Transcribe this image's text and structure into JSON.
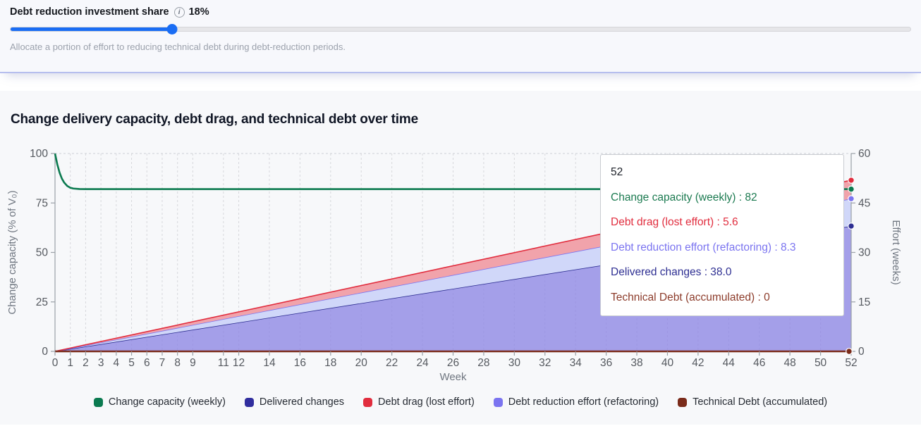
{
  "controls": {
    "label": "Debt reduction investment share",
    "info_icon": "info-circle",
    "info_glyph": "i",
    "value_label": "18%",
    "value_percent": 18,
    "help": "Allocate a portion of effort to reducing technical debt during debt-reduction periods."
  },
  "tooltip": {
    "week": "52",
    "lines": [
      {
        "label": "Change capacity (weekly)",
        "value": "82",
        "text": "Change capacity (weekly) : 82",
        "color": "#1b7a50"
      },
      {
        "label": "Debt drag (lost effort)",
        "value": "5.6",
        "text": "Debt drag (lost effort) : 5.6",
        "color": "#e12d3e"
      },
      {
        "label": "Debt reduction effort (refactoring)",
        "value": "8.3",
        "text": "Debt reduction effort (refactoring) : 8.3",
        "color": "#7b74f0"
      },
      {
        "label": "Delivered changes",
        "value": "38.0",
        "text": "Delivered changes : 38.0",
        "color": "#2e2f92"
      },
      {
        "label": "Technical Debt (accumulated)",
        "value": "0",
        "text": "Technical Debt (accumulated) : 0",
        "color": "#8c3b2a"
      }
    ]
  },
  "legend": [
    {
      "label": "Change capacity (weekly)",
      "color": "#0b7a50"
    },
    {
      "label": "Delivered changes",
      "color": "#312e9e"
    },
    {
      "label": "Debt drag (lost effort)",
      "color": "#e12d3e"
    },
    {
      "label": "Debt reduction effort (refactoring)",
      "color": "#7b74f0"
    },
    {
      "label": "Technical Debt (accumulated)",
      "color": "#7a2b1a"
    }
  ],
  "chart_data": {
    "type": "area",
    "title": "Change delivery capacity, debt drag, and technical debt over time",
    "xlabel": "Week",
    "ylabel_left": "Change capacity (% of V₀)",
    "ylabel_right": "Effort (weeks)",
    "x_range": [
      0,
      52
    ],
    "y_left_range": [
      0,
      100
    ],
    "y_right_range": [
      0,
      60
    ],
    "x_ticks": [
      0,
      1,
      2,
      3,
      4,
      5,
      6,
      7,
      8,
      9,
      11,
      12,
      14,
      16,
      18,
      20,
      22,
      24,
      26,
      28,
      30,
      32,
      34,
      36,
      38,
      40,
      42,
      44,
      46,
      48,
      50,
      52
    ],
    "y_left_ticks": [
      0,
      25,
      50,
      75,
      100
    ],
    "y_right_ticks": [
      0,
      15,
      30,
      45,
      60
    ],
    "grid": "vertical-dashed, top-boundary-dashed",
    "legend_position": "bottom-center",
    "series": [
      {
        "name": "Delivered changes",
        "kind": "area",
        "axis": "right",
        "stack": true,
        "color": "#2e2f92",
        "fill": "#8d85e4",
        "fill_opacity": 0.78,
        "points": [
          [
            0,
            0
          ],
          [
            52,
            38.0
          ]
        ]
      },
      {
        "name": "Debt reduction effort (refactoring)",
        "kind": "area",
        "axis": "right",
        "stack": true,
        "color": "#7b74f0",
        "fill": "#d0d7f9",
        "fill_opacity": 1,
        "points": [
          [
            0,
            0
          ],
          [
            52,
            8.3
          ]
        ]
      },
      {
        "name": "Debt drag (lost effort)",
        "kind": "area",
        "axis": "right",
        "stack": true,
        "color": "#e12d3e",
        "fill": "#f1a3ab",
        "fill_opacity": 1,
        "points": [
          [
            0,
            0
          ],
          [
            52,
            5.6
          ]
        ]
      },
      {
        "name": "Change capacity (weekly)",
        "kind": "line",
        "axis": "left",
        "color": "#0b7a4f",
        "points": [
          [
            0,
            100
          ],
          [
            0.15,
            94.5
          ],
          [
            0.3,
            90.3
          ],
          [
            0.45,
            87.3
          ],
          [
            0.6,
            85.3
          ],
          [
            0.8,
            83.6
          ],
          [
            1,
            82.7
          ],
          [
            1.2,
            82.3
          ],
          [
            1.6,
            82.05
          ],
          [
            2,
            82
          ],
          [
            52,
            82
          ]
        ]
      },
      {
        "name": "Technical Debt (accumulated)",
        "kind": "line",
        "axis": "right",
        "color": "#7a2b1a",
        "points": [
          [
            0,
            0
          ],
          [
            52,
            0
          ]
        ]
      }
    ],
    "end_dots": [
      {
        "series": "Debt drag (lost effort)",
        "x": 52,
        "axis": "right",
        "value": 51.9,
        "color": "#e12d3e"
      },
      {
        "series": "Change capacity (weekly)",
        "x": 52,
        "axis": "left",
        "value": 82,
        "color": "#0b7a4f"
      },
      {
        "series": "Debt reduction effort (refactoring)",
        "x": 52,
        "axis": "right",
        "value": 46.3,
        "color": "#7b74f0"
      },
      {
        "series": "Delivered changes",
        "x": 52,
        "axis": "right",
        "value": 38.0,
        "color": "#2e2f92"
      },
      {
        "series": "Technical Debt (accumulated)",
        "x": 52,
        "axis": "right",
        "value": 0,
        "color": "#7a2b1a"
      }
    ]
  }
}
